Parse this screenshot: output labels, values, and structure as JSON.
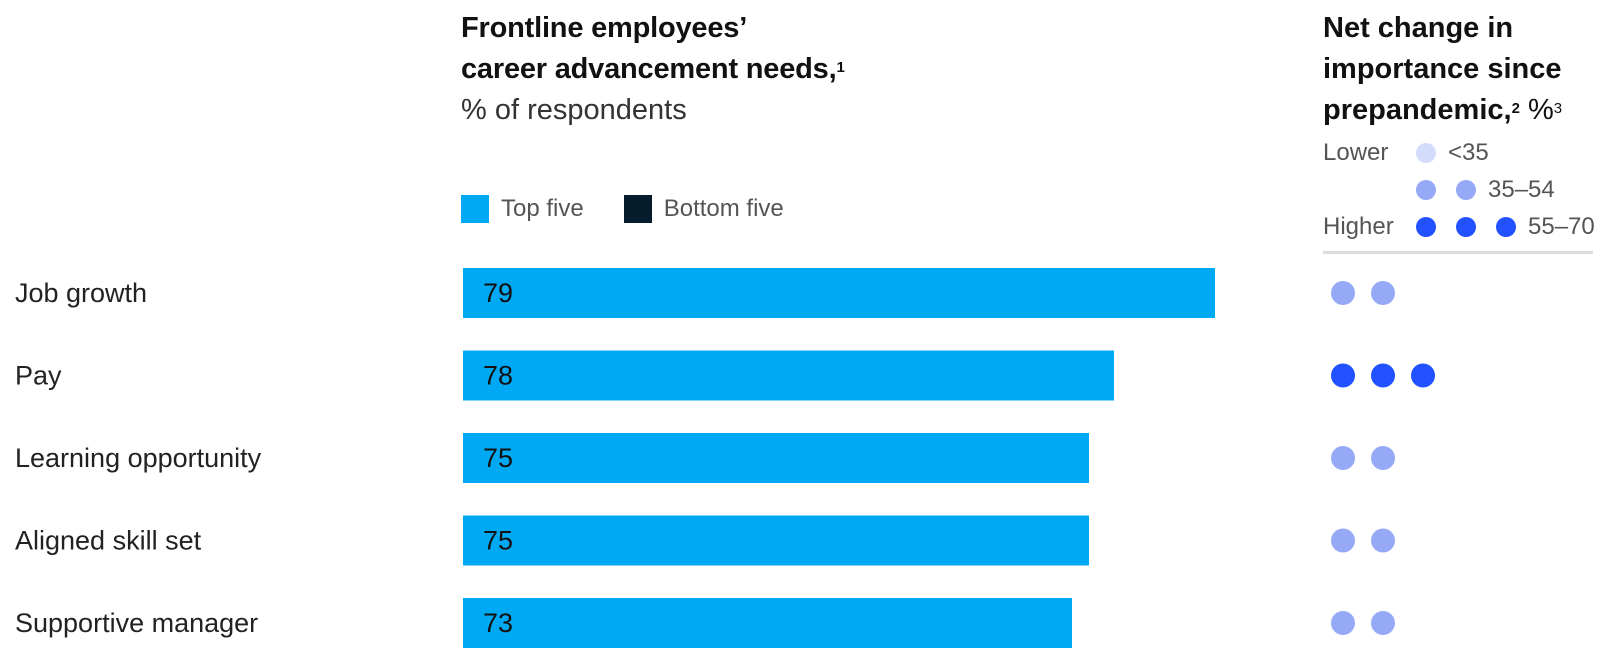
{
  "title": {
    "line1": "Frontline employees’",
    "line2": "career advancement needs,",
    "line2_sup": "1",
    "subtitle": "% of respondents"
  },
  "legend": {
    "top_label": "Top five",
    "bottom_label": "Bottom five",
    "top_color": "#00a9f4",
    "bottom_color": "#051c2c"
  },
  "right_panel": {
    "title_line1": "Net change in",
    "title_line2": "importance since",
    "title_line3": "prepandemic,",
    "title_sup2": "2",
    "title_pct": " %",
    "title_sup3": "3",
    "key": {
      "lower_label": "Lower",
      "higher_label": "Higher",
      "range1": "<35",
      "range2": "35–54",
      "range3": "55–70",
      "color1": "#d3dcfa",
      "color2": "#96a9f7",
      "color3": "#2251ff"
    }
  },
  "chart_data": {
    "type": "bar",
    "orientation": "horizontal",
    "series": [
      {
        "name": "Top five",
        "values": [
          79,
          78,
          75,
          75,
          73
        ]
      }
    ],
    "categories": [
      "Job growth",
      "Pay",
      "Learning opportunity",
      "Aligned skill set",
      "Supportive manager"
    ],
    "net_change_level": [
      2,
      3,
      2,
      2,
      2
    ],
    "title": "Frontline employees’ career advancement needs",
    "subtitle": "% of respondents",
    "xlim": [
      0,
      80
    ]
  }
}
